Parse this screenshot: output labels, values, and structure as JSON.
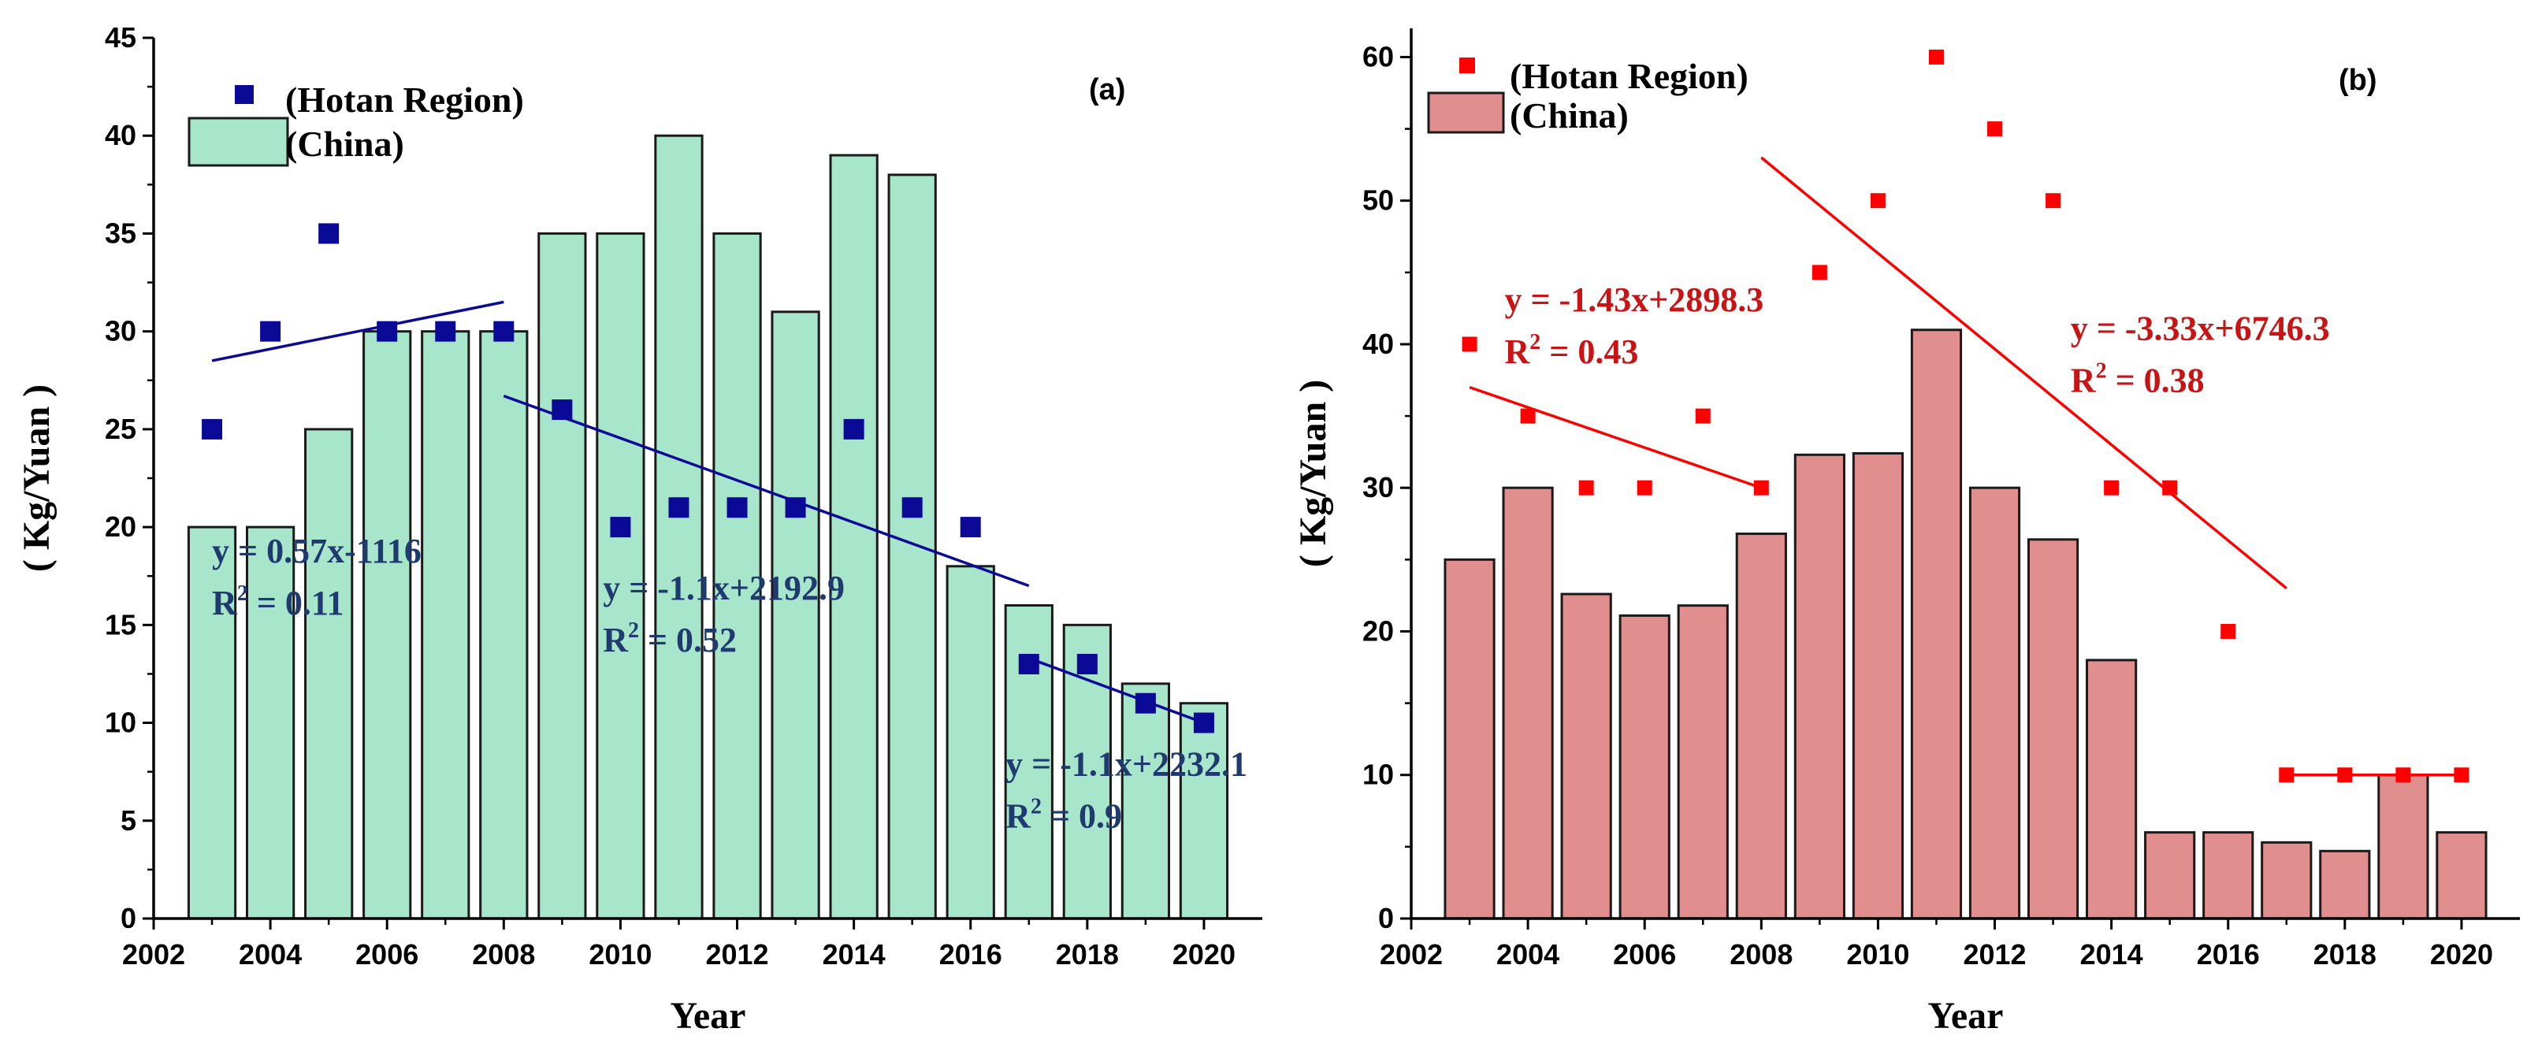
{
  "chart_data": [
    {
      "type": "bar",
      "panel_label": "(a)",
      "xlabel": "Year",
      "ylabel": "( Kg/Yuan )",
      "xlim": [
        2002,
        2021
      ],
      "ylim": [
        0,
        45
      ],
      "x_ticks": [
        2002,
        2004,
        2006,
        2008,
        2010,
        2012,
        2014,
        2016,
        2018,
        2020
      ],
      "y_ticks": [
        0,
        5,
        10,
        15,
        20,
        25,
        30,
        35,
        40,
        45
      ],
      "legend_placement": "top-left",
      "colors": {
        "bar_fill": "#a8e6cc",
        "bar_stroke": "#1a1a1a",
        "scatter": "#0a0a96",
        "fit_line": "#0a0a96",
        "annotation": "#1f3a6e"
      },
      "categories": [
        2003,
        2004,
        2005,
        2006,
        2007,
        2008,
        2009,
        2010,
        2011,
        2012,
        2013,
        2014,
        2015,
        2016,
        2017,
        2018,
        2019,
        2020
      ],
      "series": [
        {
          "name": "(China)",
          "type": "bar",
          "values": [
            20,
            20,
            25,
            30,
            30,
            30,
            35,
            35,
            40,
            35,
            31,
            39,
            38,
            18,
            16,
            15,
            12,
            11
          ]
        },
        {
          "name": "(Hotan Region)",
          "type": "scatter",
          "values": [
            25,
            30,
            35,
            30,
            30,
            30,
            26,
            20,
            21,
            21,
            21,
            25,
            21,
            20,
            13,
            13,
            11,
            10
          ]
        }
      ],
      "trend_lines": [
        {
          "x": [
            2003,
            2008
          ],
          "y": [
            28.5,
            31.5
          ]
        },
        {
          "x": [
            2008,
            2017
          ],
          "y": [
            26.7,
            17.0
          ]
        },
        {
          "x": [
            2017,
            2020
          ],
          "y": [
            13.3,
            10.0
          ]
        }
      ],
      "annotations": [
        {
          "equation": "y = 0.57x-1116",
          "r2_prefix": "R",
          "r2_sup": "2",
          "r2_value": " = 0.11",
          "x": 2003,
          "y": 18.2
        },
        {
          "equation": "y = -1.1x+2192.9",
          "r2_prefix": "R",
          "r2_sup": "2",
          "r2_value": " = 0.52",
          "x": 2009.7,
          "y": 16.3
        },
        {
          "equation": "y = -1.1x+2232.1",
          "r2_prefix": "R",
          "r2_sup": "2",
          "r2_value": " = 0.9",
          "x": 2016.6,
          "y": 7.3
        }
      ]
    },
    {
      "type": "bar",
      "panel_label": "(b)",
      "xlabel": "Year",
      "ylabel": "( Kg/Yuan )",
      "xlim": [
        2002,
        2021
      ],
      "ylim": [
        0,
        62
      ],
      "x_ticks": [
        2002,
        2004,
        2006,
        2008,
        2010,
        2012,
        2014,
        2016,
        2018,
        2020
      ],
      "y_ticks": [
        0,
        10,
        20,
        30,
        40,
        50,
        60
      ],
      "legend_placement": "top-left",
      "colors": {
        "bar_fill": "#e08e8e",
        "bar_stroke": "#1a1a1a",
        "scatter": "#ff0000",
        "fit_line": "#ff0000",
        "annotation": "#c81414"
      },
      "categories": [
        2003,
        2004,
        2005,
        2006,
        2007,
        2008,
        2009,
        2010,
        2011,
        2012,
        2013,
        2014,
        2015,
        2016,
        2017,
        2018,
        2019,
        2020
      ],
      "series": [
        {
          "name": "(China)",
          "type": "bar",
          "values": [
            25,
            30,
            22.6,
            21.1,
            21.8,
            26.8,
            32.3,
            32.4,
            41,
            30,
            26.4,
            18,
            6,
            6,
            5.3,
            4.7,
            10,
            6
          ]
        },
        {
          "name": "(Hotan Region)",
          "type": "scatter",
          "values": [
            40,
            35,
            30,
            30,
            35,
            30,
            45,
            50,
            60,
            55,
            50,
            30,
            30,
            20,
            10,
            10,
            10,
            10
          ]
        }
      ],
      "trend_lines": [
        {
          "x": [
            2003,
            2008
          ],
          "y": [
            37,
            30
          ]
        },
        {
          "x": [
            2008,
            2017
          ],
          "y": [
            53,
            23
          ]
        },
        {
          "x": [
            2017,
            2020
          ],
          "y": [
            10,
            10
          ]
        }
      ],
      "annotations": [
        {
          "equation": "y = -1.43x+2898.3",
          "r2_prefix": "R",
          "r2_sup": "2",
          "r2_value": " = 0.43",
          "x": 2003.6,
          "y": 42.3
        },
        {
          "equation": "y = -3.33x+6746.3",
          "r2_prefix": "R",
          "r2_sup": "2",
          "r2_value": " = 0.38",
          "x": 2013.3,
          "y": 40.3
        }
      ]
    }
  ]
}
